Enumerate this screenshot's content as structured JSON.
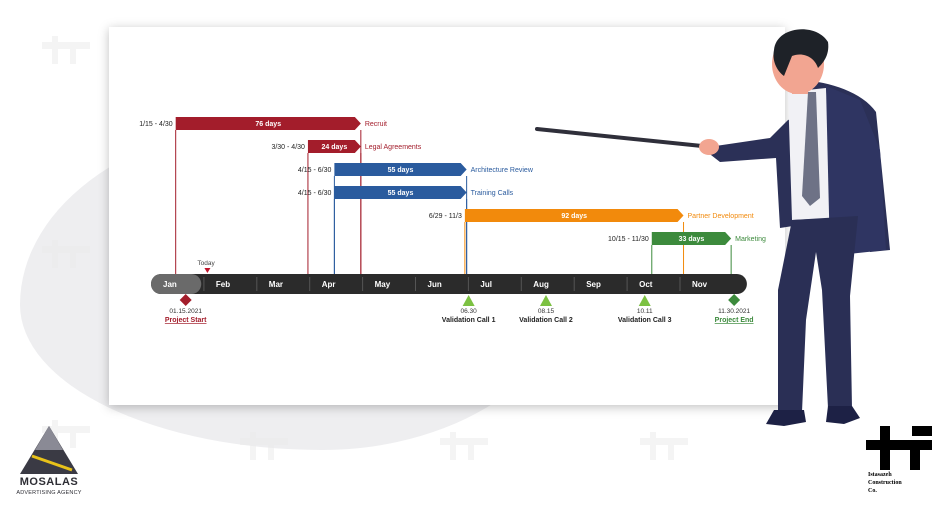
{
  "colors": {
    "recruit": "#a31d2b",
    "legal": "#a31d2b",
    "architecture": "#2a5b9e",
    "training": "#2a5b9e",
    "partner": "#f28a0c",
    "marketing": "#3c8a3c",
    "timeline": "#2b2b2b",
    "today": "#c0132b",
    "milestone_start": "#a31d2b",
    "milestone_end": "#3c8a3c",
    "validation": "#7cc142"
  },
  "timeline": {
    "months": [
      "Jan",
      "Feb",
      "Mar",
      "Apr",
      "May",
      "Jun",
      "Jul",
      "Aug",
      "Sep",
      "Oct",
      "Nov"
    ],
    "today_label": "Today"
  },
  "tasks": [
    {
      "name": "Recruit",
      "range": "1/15 - 4/30",
      "duration": "76 days",
      "color": "#a31d2b"
    },
    {
      "name": "Legal Agreements",
      "range": "3/30 - 4/30",
      "duration": "24 days",
      "color": "#a31d2b"
    },
    {
      "name": "Architecture Review",
      "range": "4/15 - 6/30",
      "duration": "55 days",
      "color": "#2a5b9e"
    },
    {
      "name": "Training Calls",
      "range": "4/15 - 6/30",
      "duration": "55 days",
      "color": "#2a5b9e"
    },
    {
      "name": "Partner Development",
      "range": "6/29 - 11/3",
      "duration": "92 days",
      "color": "#f28a0c"
    },
    {
      "name": "Marketing",
      "range": "10/15 - 11/30",
      "duration": "33 days",
      "color": "#3c8a3c"
    }
  ],
  "milestones": [
    {
      "date": "01.15.2021",
      "label": "Project Start",
      "kind": "diamond",
      "color": "#a31d2b"
    },
    {
      "date": "06.30",
      "label": "Validation Call 1",
      "kind": "triangle",
      "color": "#7cc142"
    },
    {
      "date": "08.15",
      "label": "Validation Call 2",
      "kind": "triangle",
      "color": "#7cc142"
    },
    {
      "date": "10.11",
      "label": "Validation Call 3",
      "kind": "triangle",
      "color": "#7cc142"
    },
    {
      "date": "11.30.2021",
      "label": "Project End",
      "kind": "diamond",
      "color": "#3c8a3c"
    }
  ],
  "logos": {
    "left_name": "MOSALAS",
    "left_sub": "ADVERTISING AGENCY",
    "right_line1": "Istasazeh",
    "right_line2": "Construction",
    "right_line3": "Co."
  }
}
